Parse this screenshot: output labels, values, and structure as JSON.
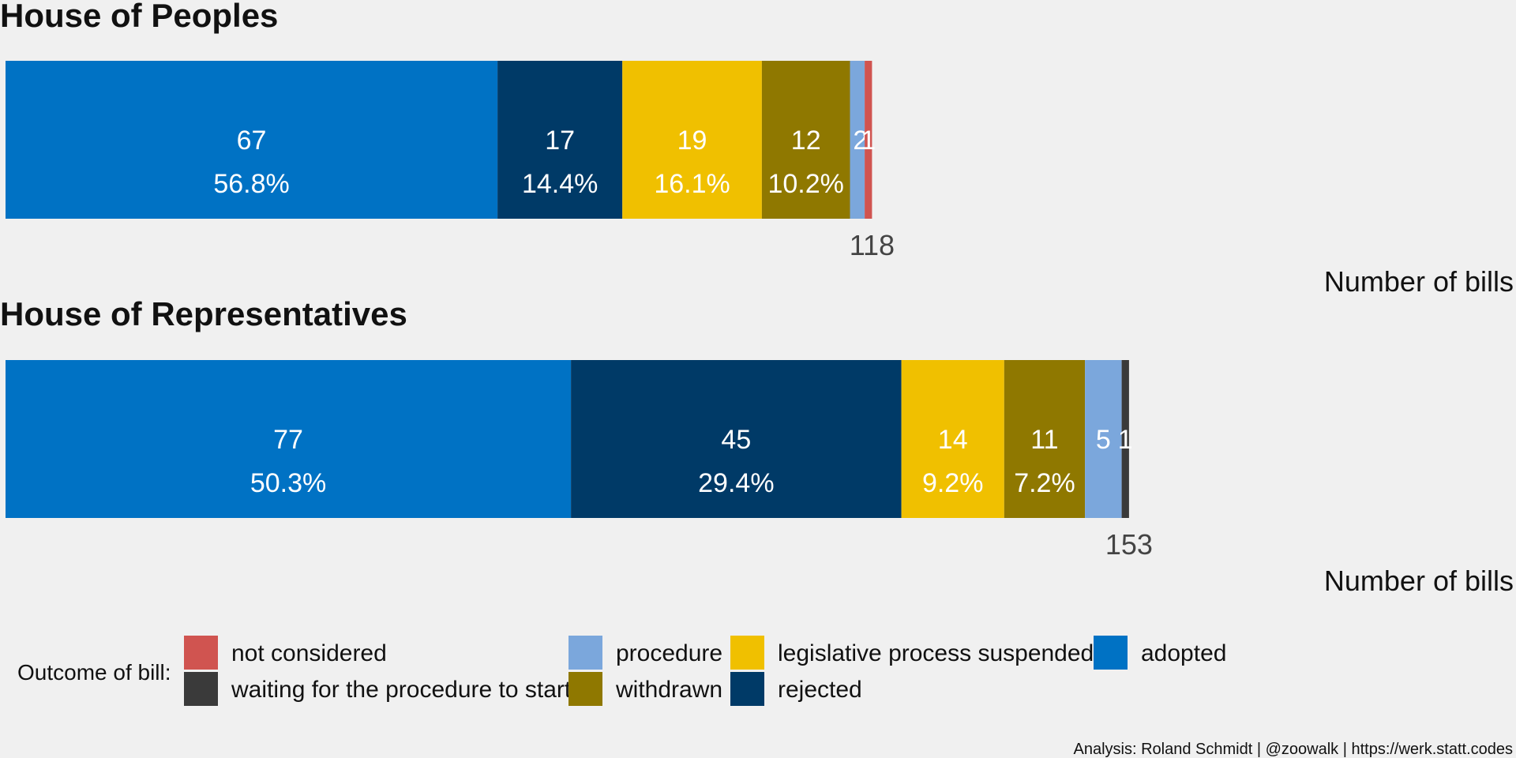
{
  "chart_data": {
    "type": "bar",
    "orientation": "horizontal-stacked",
    "grid": false,
    "legend_position": "bottom",
    "categories": [
      "not considered",
      "waiting for the procedure to start",
      "procedure",
      "withdrawn",
      "legislative process suspended",
      "rejected",
      "adopted"
    ],
    "colors": {
      "not considered": "#d05450",
      "waiting for the procedure to start": "#3a3a3a",
      "procedure": "#7ba7dc",
      "withdrawn": "#8f7800",
      "legislative process suspended": "#f0c000",
      "rejected": "#003a67",
      "adopted": "#0072c4"
    },
    "panels": [
      {
        "title": "House of Peoples",
        "total": 118,
        "xlabel": "Number of bills",
        "segments": [
          {
            "category": "adopted",
            "value": 67,
            "percent": "56.8%"
          },
          {
            "category": "rejected",
            "value": 17,
            "percent": "14.4%"
          },
          {
            "category": "legislative process suspended",
            "value": 19,
            "percent": "16.1%"
          },
          {
            "category": "withdrawn",
            "value": 12,
            "percent": "10.2%"
          },
          {
            "category": "procedure",
            "value": 2,
            "percent": ""
          },
          {
            "category": "not considered",
            "value": 1,
            "percent": ""
          }
        ]
      },
      {
        "title": "House of Representatives",
        "total": 153,
        "xlabel": "Number of bills",
        "segments": [
          {
            "category": "adopted",
            "value": 77,
            "percent": "50.3%"
          },
          {
            "category": "rejected",
            "value": 45,
            "percent": "29.4%"
          },
          {
            "category": "legislative process suspended",
            "value": 14,
            "percent": "9.2%"
          },
          {
            "category": "withdrawn",
            "value": 11,
            "percent": "7.2%"
          },
          {
            "category": "procedure",
            "value": 5,
            "percent": ""
          },
          {
            "category": "waiting for the procedure to start",
            "value": 1,
            "percent": ""
          }
        ]
      }
    ],
    "legend": {
      "title": "Outcome of bill:",
      "items": [
        "not considered",
        "waiting for the procedure to start",
        "procedure",
        "withdrawn",
        "legislative process suspended",
        "rejected",
        "adopted"
      ]
    },
    "caption": "Analysis: Roland Schmidt | @zoowalk | https://werk.statt.codes"
  }
}
